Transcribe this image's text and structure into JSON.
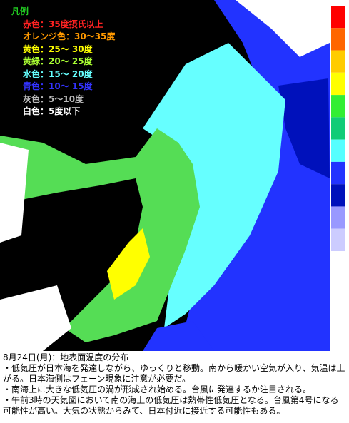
{
  "legend": {
    "title": "凡例",
    "items": [
      {
        "label": "赤色：35度摂氏以上",
        "color": "#ff2222"
      },
      {
        "label": "オレンジ色：30～35度",
        "color": "#ff9900"
      },
      {
        "label": "黄色：25～ 30度",
        "color": "#ffff00"
      },
      {
        "label": "黄緑：20～ 25度",
        "color": "#aaff33"
      },
      {
        "label": "水色：15～ 20度",
        "color": "#66ffff"
      },
      {
        "label": "青色：10～ 15度",
        "color": "#3333ff"
      },
      {
        "label": "灰色：5～10度",
        "color": "#bbbbbb"
      },
      {
        "label": "白色：5度以下",
        "color": "#ffffff"
      }
    ]
  },
  "color_scale": [
    "#ff0000",
    "#ff6600",
    "#ffcc00",
    "#ffff00",
    "#33ee33",
    "#11cc77",
    "#55ffff",
    "#2233ff",
    "#0011bb",
    "#9999ff",
    "#ccccff"
  ],
  "caption": {
    "title": "8月24日(月)：地表面温度の分布",
    "lines": [
      "・低気圧が日本海を発達しながら、ゆっくりと移動。南から暖かい空気が入り、気温は上がる。日本海側はフェーン現象に注意が必要だ。",
      "・南海上に大きな低気圧の渦が形成され始める。台風に発達するか注目される。",
      "・午前3時の天気図において南の海上の低気圧は熱帯性低気圧となる。台風第4号になる可能性が高い。大気の状態からみて、日本付近に接近する可能性もある。"
    ]
  }
}
